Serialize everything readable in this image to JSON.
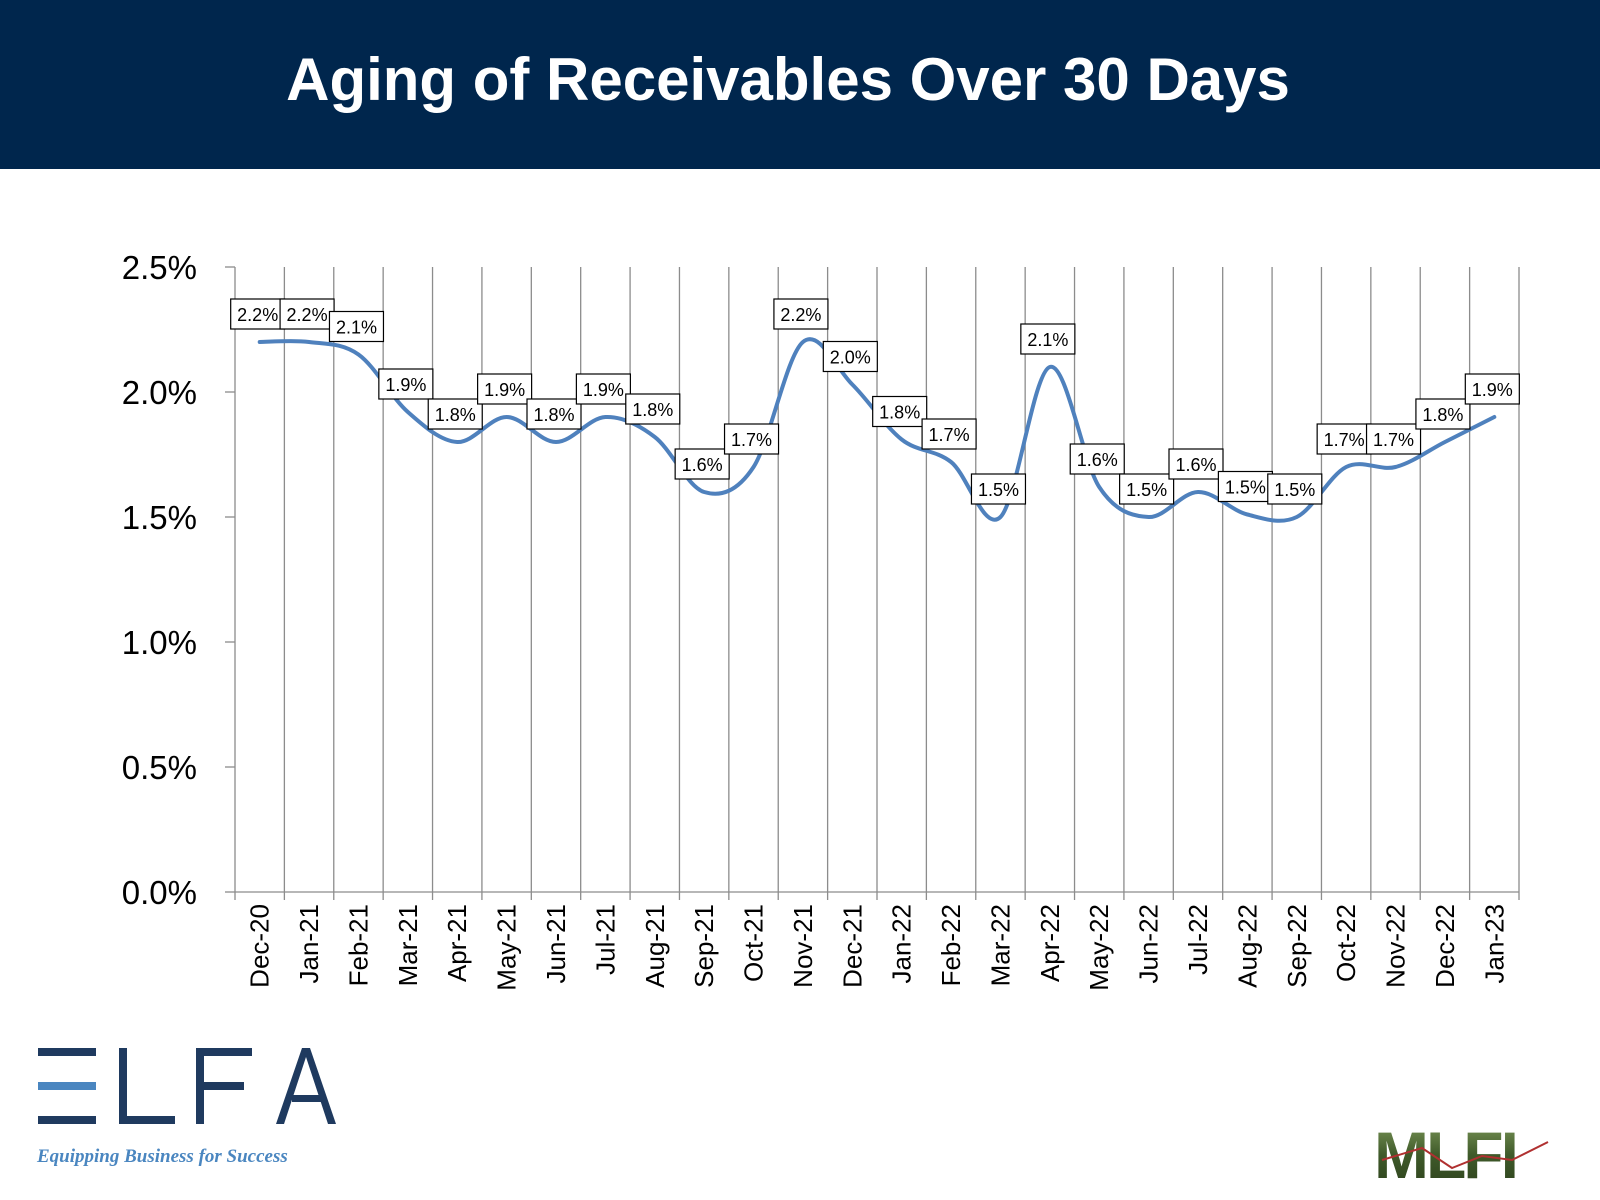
{
  "title": "Aging of Receivables Over 30 Days",
  "logos": {
    "elfa_text": "ELFA",
    "elfa_tagline": "Equipping Business for Success",
    "mlfi_text": "MLFI"
  },
  "colors": {
    "header_bg": "#00264d",
    "line": "#4f81bd",
    "grid": "#8c8c8c",
    "elfa_navy": "#1f3a5f",
    "elfa_light_blue": "#4a86c0",
    "mlfi_green": "#3f5a2a"
  },
  "chart_data": {
    "type": "line",
    "title": "",
    "xlabel": "",
    "ylabel": "",
    "categories": [
      "Dec-20",
      "Jan-21",
      "Feb-21",
      "Mar-21",
      "Apr-21",
      "May-21",
      "Jun-21",
      "Jul-21",
      "Aug-21",
      "Sep-21",
      "Oct-21",
      "Nov-21",
      "Dec-21",
      "Jan-22",
      "Feb-22",
      "Mar-22",
      "Apr-22",
      "May-22",
      "Jun-22",
      "Jul-22",
      "Aug-22",
      "Sep-22",
      "Oct-22",
      "Nov-22",
      "Dec-22",
      "Jan-23"
    ],
    "series": [
      {
        "values": [
          2.2,
          2.2,
          2.15,
          1.92,
          1.8,
          1.9,
          1.8,
          1.9,
          1.82,
          1.6,
          1.7,
          2.2,
          2.03,
          1.81,
          1.72,
          1.5,
          2.1,
          1.62,
          1.5,
          1.6,
          1.51,
          1.5,
          1.7,
          1.7,
          1.8,
          1.9
        ],
        "labels": [
          "2.2%",
          "2.2%",
          "2.1%",
          "1.9%",
          "1.8%",
          "1.9%",
          "1.8%",
          "1.9%",
          "1.8%",
          "1.6%",
          "1.7%",
          "2.2%",
          "2.0%",
          "1.8%",
          "1.7%",
          "1.5%",
          "2.1%",
          "1.6%",
          "1.5%",
          "1.6%",
          "1.5%",
          "1.5%",
          "1.7%",
          "1.7%",
          "1.8%",
          "1.9%"
        ]
      }
    ],
    "ylim": [
      0,
      2.5
    ],
    "yticks": [
      "0.0%",
      "0.5%",
      "1.0%",
      "1.5%",
      "2.0%",
      "2.5%"
    ],
    "ytick_values": [
      0,
      0.5,
      1.0,
      1.5,
      2.0,
      2.5
    ],
    "smooth": true,
    "vertical_gridlines": true,
    "horizontal_gridlines": false,
    "legend": "none"
  }
}
